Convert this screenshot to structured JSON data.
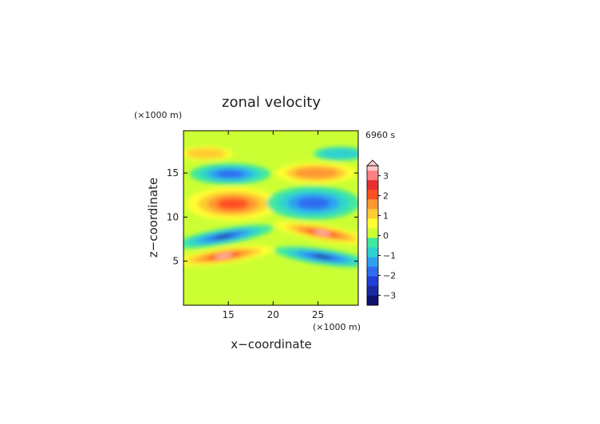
{
  "chart_data": {
    "type": "heatmap",
    "title": "zonal velocity",
    "time_label": "6960 s",
    "xlabel": "x−coordinate",
    "ylabel": "z−coordinate",
    "x_unit": "(×1000 m)",
    "y_unit": "(×1000 m)",
    "xlim": [
      10,
      29.5
    ],
    "ylim": [
      0,
      19.8
    ],
    "x_ticks": [
      15,
      20,
      25
    ],
    "y_ticks": [
      5,
      10,
      15
    ],
    "colorbar": {
      "tick_values": [
        3,
        2,
        1,
        0,
        -1,
        -2,
        -3
      ],
      "levels": [
        3.5,
        3.25,
        3.0,
        2.75,
        2.5,
        2.25,
        2.0,
        1.75,
        1.5,
        1.25,
        1.0,
        0.75,
        0.5,
        0.25,
        0.0,
        -0.25,
        -0.5,
        -0.75,
        -1.0,
        -1.25,
        -1.5,
        -1.75,
        -2.0,
        -2.25,
        -2.5,
        -2.75,
        -3.0,
        -3.25,
        -3.5
      ],
      "extend": "max"
    },
    "features": [
      {
        "x": 15.5,
        "z": 11.5,
        "value": 2.1
      },
      {
        "x": 24.5,
        "z": 11.6,
        "value": -2.2
      },
      {
        "x": 15.2,
        "z": 14.9,
        "value": -1.8
      },
      {
        "x": 24.8,
        "z": 15.0,
        "value": 1.7
      },
      {
        "x": 14.5,
        "z": 7.8,
        "value": -3.6
      },
      {
        "x": 25.5,
        "z": 8.2,
        "value": 3.6
      },
      {
        "x": 14.5,
        "z": 5.6,
        "value": 3.6
      },
      {
        "x": 25.5,
        "z": 5.5,
        "value": -3.6
      },
      {
        "x": 12.5,
        "z": 17.2,
        "value": 1.2
      },
      {
        "x": 27.5,
        "z": 17.2,
        "value": -1.2
      }
    ],
    "grid": false,
    "legend": "colorbar-right"
  }
}
